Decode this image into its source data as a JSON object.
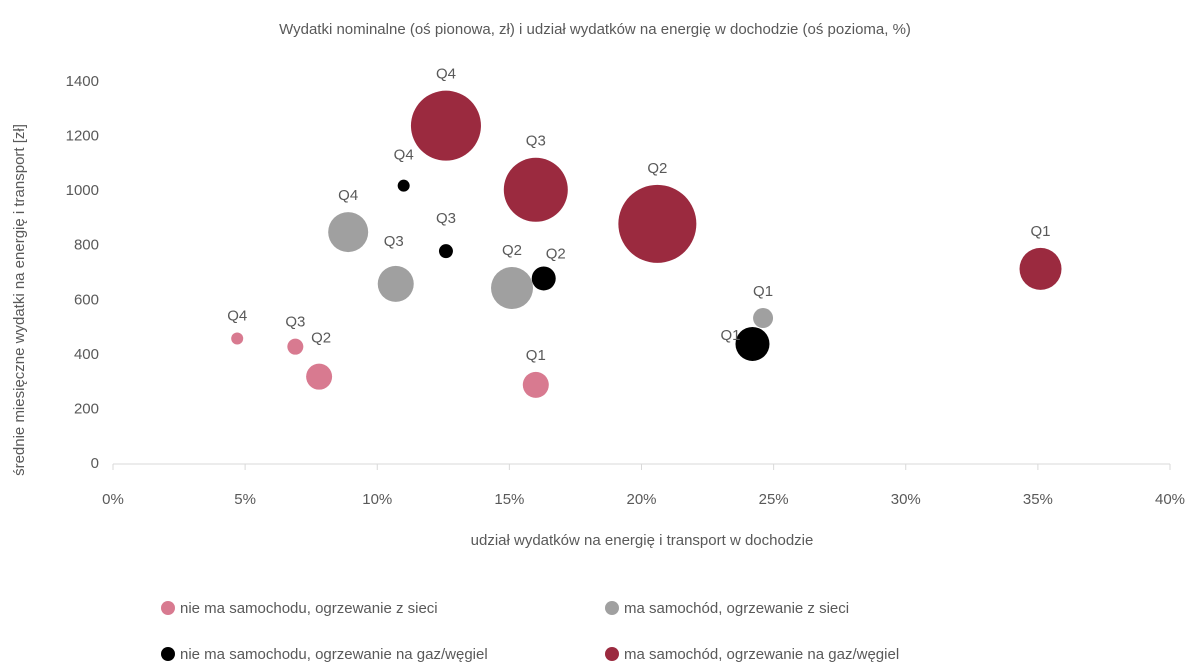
{
  "chart_data": {
    "type": "bubble",
    "title": "Wydatki nominalne (oś pionowa, zł) i udział wydatków na energię w dochodzie (oś pozioma, %)",
    "x_label": "udział wydatków na energię i transport w dochodzie",
    "y_label": "średnie miesięczne wydatki na energię i transport [zł]",
    "xlim": [
      0,
      40
    ],
    "xticks": [
      {
        "value": 0,
        "label": "0%"
      },
      {
        "value": 5,
        "label": "5%"
      },
      {
        "value": 10,
        "label": "10%"
      },
      {
        "value": 15,
        "label": "15%"
      },
      {
        "value": 20,
        "label": "20%"
      },
      {
        "value": 25,
        "label": "25%"
      },
      {
        "value": 30,
        "label": "30%"
      },
      {
        "value": 35,
        "label": "35%"
      },
      {
        "value": 40,
        "label": "40%"
      }
    ],
    "ylim": [
      0,
      1400
    ],
    "yticks": [
      0,
      200,
      400,
      600,
      800,
      1000,
      1200,
      1400
    ],
    "series": [
      {
        "name": "nie ma samochodu, ogrzewanie z sieci",
        "color": "#d87a90",
        "labels": [
          "Q4",
          "Q3",
          "Q2",
          "Q1"
        ],
        "x": [
          4.7,
          6.9,
          7.8,
          16.0
        ],
        "values": [
          460,
          430,
          320,
          290
        ],
        "sizes": [
          36,
          64,
          169,
          169
        ]
      },
      {
        "name": "ma samochód, ogrzewanie z sieci",
        "color": "#a0a0a0",
        "labels": [
          "Q4",
          "Q3",
          "Q2",
          "Q1"
        ],
        "x": [
          8.9,
          10.7,
          15.1,
          24.6
        ],
        "values": [
          850,
          660,
          645,
          535
        ],
        "sizes": [
          400,
          324,
          441,
          100
        ]
      },
      {
        "name": "nie ma samochodu, ogrzewanie na gaz/węgiel",
        "color": "#000000",
        "labels": [
          "Q4",
          "Q3",
          "Q2",
          "Q1"
        ],
        "x": [
          11.0,
          12.6,
          16.3,
          24.2
        ],
        "values": [
          1020,
          780,
          680,
          440
        ],
        "sizes": [
          36,
          49,
          144,
          289
        ]
      },
      {
        "name": "ma samochód, ogrzewanie na gaz/węgiel",
        "color": "#9b2a3f",
        "labels": [
          "Q4",
          "Q3",
          "Q2",
          "Q1"
        ],
        "x": [
          12.6,
          16.0,
          20.6,
          35.1
        ],
        "values": [
          1240,
          1005,
          880,
          715
        ],
        "sizes": [
          1225,
          1024,
          1521,
          441
        ]
      }
    ],
    "legend": "bottom"
  }
}
